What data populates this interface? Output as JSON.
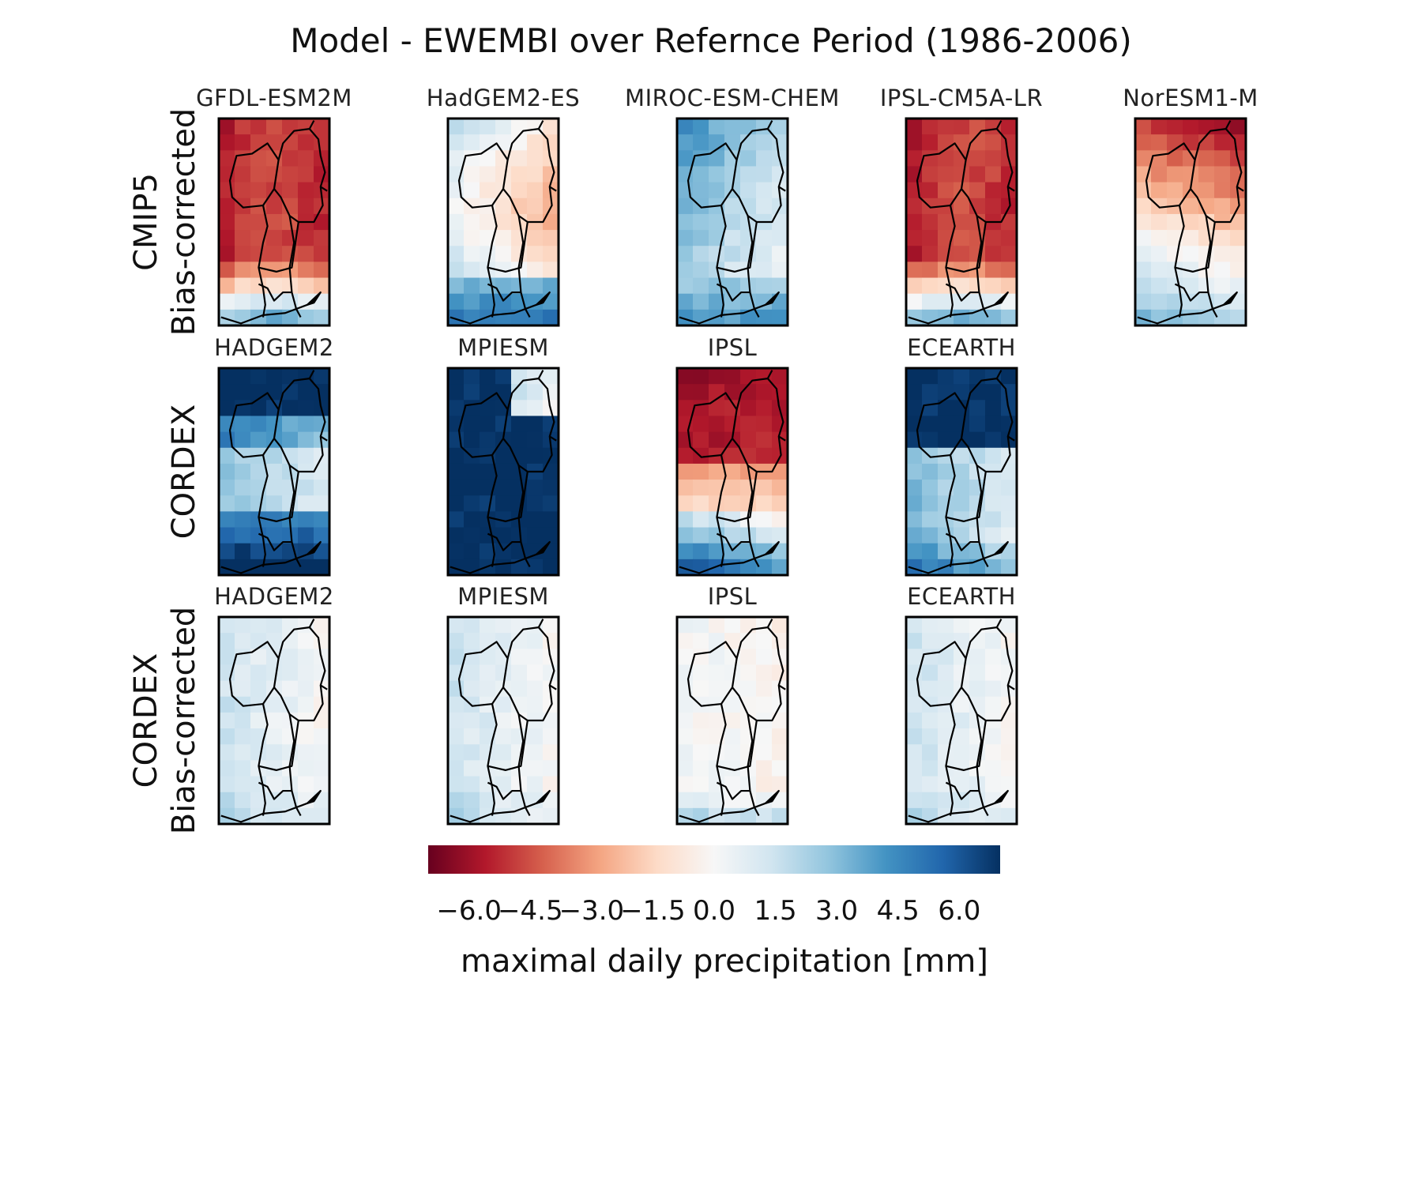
{
  "figure": {
    "title": "Model - EWEMBI over Refernce Period (1986-2006)"
  },
  "colors": {
    "negative_end": "#67001f",
    "neutral": "#f7f7f7",
    "positive_end": "#053061",
    "border": "#000000"
  },
  "chart_data": {
    "type": "heatmap",
    "colormap": "RdBu",
    "value_range": [
      -7,
      7
    ],
    "rows": [
      {
        "label_line1": "CMIP5",
        "label_line2": "Bias-corrected",
        "panels": [
          {
            "title": "GFDL-ESM2M",
            "pattern": "dry_strong"
          },
          {
            "title": "HadGEM2-ES",
            "pattern": "wet_west_dry_east"
          },
          {
            "title": "MIROC-ESM-CHEM",
            "pattern": "wet"
          },
          {
            "title": "IPSL-CM5A-LR",
            "pattern": "dry_strong"
          },
          {
            "title": "NorESM1-M",
            "pattern": "dry_north_wet_south"
          }
        ]
      },
      {
        "label_line1": "CORDEX",
        "label_line2": "",
        "panels": [
          {
            "title": "HADGEM2",
            "pattern": "wet_strong_mid_light"
          },
          {
            "title": "MPIESM",
            "pattern": "very_wet"
          },
          {
            "title": "IPSL",
            "pattern": "dry_north"
          },
          {
            "title": "ECEARTH",
            "pattern": "wet_north"
          }
        ]
      },
      {
        "label_line1": "CORDEX",
        "label_line2": "Bias-corrected",
        "panels": [
          {
            "title": "HADGEM2",
            "pattern": "slight_wet"
          },
          {
            "title": "MPIESM",
            "pattern": "slight_wet"
          },
          {
            "title": "IPSL",
            "pattern": "near_zero"
          },
          {
            "title": "ECEARTH",
            "pattern": "slight_wet"
          }
        ]
      }
    ],
    "colorbar": {
      "ticks": [
        -6.0,
        -4.5,
        -3.0,
        -1.5,
        0.0,
        1.5,
        3.0,
        4.5,
        6.0
      ],
      "tick_labels": [
        "−6.0",
        "−4.5",
        "−3.0",
        "−1.5",
        "0.0",
        "1.5",
        "3.0",
        "4.5",
        "6.0"
      ],
      "label": "maximal daily precipitation [mm]"
    }
  }
}
